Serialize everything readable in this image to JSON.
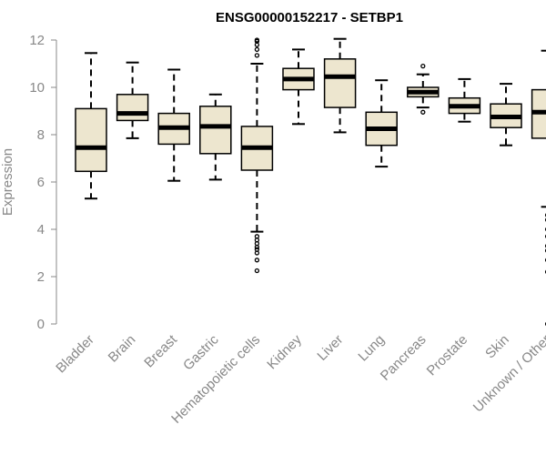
{
  "chart_data": {
    "type": "boxplot",
    "title": "ENSG00000152217 - SETBP1",
    "xlabel": "",
    "ylabel": "Expression",
    "ylim": [
      0,
      12
    ],
    "yticks": [
      0,
      2,
      4,
      6,
      8,
      10,
      12
    ],
    "grid": false,
    "colors": {
      "box_fill": "#ede6cf",
      "stroke": "#000000",
      "axis": "#888888"
    },
    "categories": [
      "Bladder",
      "Brain",
      "Breast",
      "Gastric",
      "Hematopoietic cells",
      "Kidney",
      "Liver",
      "Lung",
      "Pancreas",
      "Prostate",
      "Skin",
      "Unknown / Other"
    ],
    "boxes": [
      {
        "category": "Bladder",
        "whisker_low": 5.3,
        "q1": 6.45,
        "median": 7.45,
        "q3": 9.1,
        "whisker_high": 11.45,
        "outliers": []
      },
      {
        "category": "Brain",
        "whisker_low": 7.85,
        "q1": 8.6,
        "median": 8.9,
        "q3": 9.7,
        "whisker_high": 11.05,
        "outliers": []
      },
      {
        "category": "Breast",
        "whisker_low": 6.05,
        "q1": 7.6,
        "median": 8.3,
        "q3": 8.9,
        "whisker_high": 10.75,
        "outliers": []
      },
      {
        "category": "Gastric",
        "whisker_low": 6.1,
        "q1": 7.2,
        "median": 8.35,
        "q3": 9.2,
        "whisker_high": 9.7,
        "outliers": []
      },
      {
        "category": "Hematopoietic cells",
        "whisker_low": 3.9,
        "q1": 6.5,
        "median": 7.45,
        "q3": 8.35,
        "whisker_high": 11.0,
        "outliers": [
          2.25,
          2.7,
          3.0,
          3.15,
          3.25,
          3.4,
          3.55,
          3.7,
          11.35,
          11.6,
          11.8,
          11.95,
          12.0
        ]
      },
      {
        "category": "Kidney",
        "whisker_low": 8.45,
        "q1": 9.9,
        "median": 10.35,
        "q3": 10.8,
        "whisker_high": 11.6,
        "outliers": []
      },
      {
        "category": "Liver",
        "whisker_low": 8.1,
        "q1": 9.15,
        "median": 10.45,
        "q3": 11.2,
        "whisker_high": 12.05,
        "outliers": []
      },
      {
        "category": "Lung",
        "whisker_low": 6.65,
        "q1": 7.55,
        "median": 8.25,
        "q3": 8.95,
        "whisker_high": 10.3,
        "outliers": []
      },
      {
        "category": "Pancreas",
        "whisker_low": 9.15,
        "q1": 9.6,
        "median": 9.8,
        "q3": 10.0,
        "whisker_high": 10.55,
        "outliers": [
          8.95,
          10.9
        ]
      },
      {
        "category": "Prostate",
        "whisker_low": 8.55,
        "q1": 8.9,
        "median": 9.2,
        "q3": 9.55,
        "whisker_high": 10.35,
        "outliers": []
      },
      {
        "category": "Skin",
        "whisker_low": 7.55,
        "q1": 8.3,
        "median": 8.75,
        "q3": 9.3,
        "whisker_high": 10.15,
        "outliers": []
      },
      {
        "category": "Unknown / Other",
        "whisker_low": 4.95,
        "q1": 7.85,
        "median": 8.95,
        "q3": 9.9,
        "whisker_high": 11.55,
        "outliers": [
          0.0,
          2.2,
          2.7,
          3.1,
          3.3,
          3.7,
          4.0,
          4.4,
          4.6
        ]
      }
    ]
  }
}
